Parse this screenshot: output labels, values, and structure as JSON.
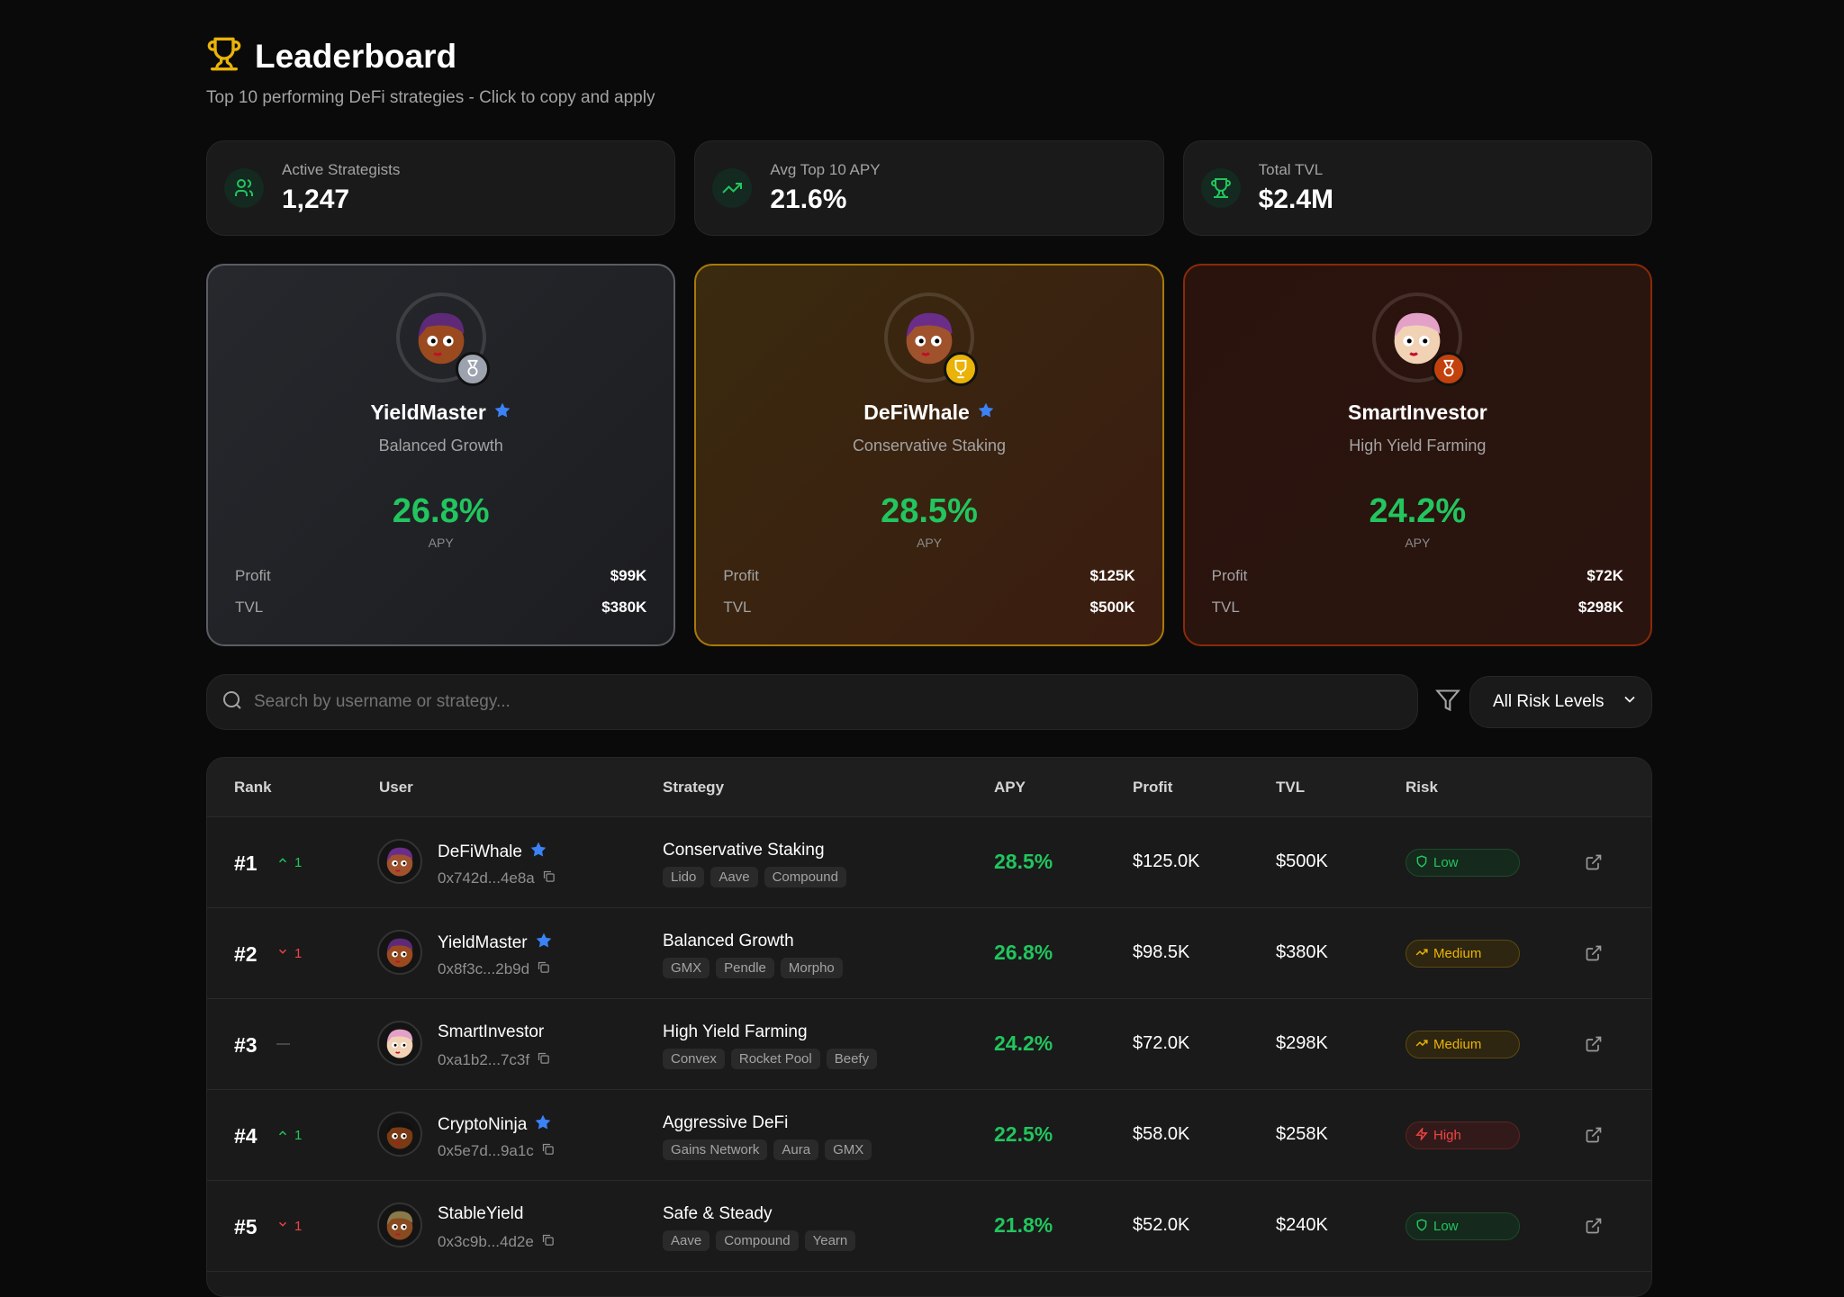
{
  "header": {
    "title": "Leaderboard",
    "subtitle": "Top 10 performing DeFi strategies - Click to copy and apply"
  },
  "stats": [
    {
      "label": "Active Strategists",
      "value": "1,247",
      "icon": "users-icon"
    },
    {
      "label": "Avg Top 10 APY",
      "value": "21.6%",
      "icon": "trending-up-icon"
    },
    {
      "label": "Total TVL",
      "value": "$2.4M",
      "icon": "trophy-icon"
    }
  ],
  "podium": [
    {
      "place": 2,
      "name": "YieldMaster",
      "verified": true,
      "strategy": "Balanced Growth",
      "apy": "26.8%",
      "apy_label": "APY",
      "profit_label": "Profit",
      "profit": "$99K",
      "tvl_label": "TVL",
      "tvl": "$380K"
    },
    {
      "place": 1,
      "name": "DeFiWhale",
      "verified": true,
      "strategy": "Conservative Staking",
      "apy": "28.5%",
      "apy_label": "APY",
      "profit_label": "Profit",
      "profit": "$125K",
      "tvl_label": "TVL",
      "tvl": "$500K"
    },
    {
      "place": 3,
      "name": "SmartInvestor",
      "verified": false,
      "strategy": "High Yield Farming",
      "apy": "24.2%",
      "apy_label": "APY",
      "profit_label": "Profit",
      "profit": "$72K",
      "tvl_label": "TVL",
      "tvl": "$298K"
    }
  ],
  "search": {
    "placeholder": "Search by username or strategy..."
  },
  "filter": {
    "selected": "All Risk Levels"
  },
  "table": {
    "headers": [
      "Rank",
      "User",
      "Strategy",
      "APY",
      "Profit",
      "TVL",
      "Risk"
    ],
    "rows": [
      {
        "rank": "#1",
        "change": "1",
        "dir": "up",
        "name": "DeFiWhale",
        "verified": true,
        "address": "0x742d...4e8a",
        "strategy": "Conservative Staking",
        "tags": [
          "Lido",
          "Aave",
          "Compound"
        ],
        "apy": "28.5%",
        "profit": "$125.0K",
        "tvl": "$500K",
        "risk": "Low"
      },
      {
        "rank": "#2",
        "change": "1",
        "dir": "down",
        "name": "YieldMaster",
        "verified": true,
        "address": "0x8f3c...2b9d",
        "strategy": "Balanced Growth",
        "tags": [
          "GMX",
          "Pendle",
          "Morpho"
        ],
        "apy": "26.8%",
        "profit": "$98.5K",
        "tvl": "$380K",
        "risk": "Medium"
      },
      {
        "rank": "#3",
        "change": "",
        "dir": "same",
        "name": "SmartInvestor",
        "verified": false,
        "address": "0xa1b2...7c3f",
        "strategy": "High Yield Farming",
        "tags": [
          "Convex",
          "Rocket Pool",
          "Beefy"
        ],
        "apy": "24.2%",
        "profit": "$72.0K",
        "tvl": "$298K",
        "risk": "Medium"
      },
      {
        "rank": "#4",
        "change": "1",
        "dir": "up",
        "name": "CryptoNinja",
        "verified": true,
        "address": "0x5e7d...9a1c",
        "strategy": "Aggressive DeFi",
        "tags": [
          "Gains Network",
          "Aura",
          "GMX"
        ],
        "apy": "22.5%",
        "profit": "$58.0K",
        "tvl": "$258K",
        "risk": "High"
      },
      {
        "rank": "#5",
        "change": "1",
        "dir": "down",
        "name": "StableYield",
        "verified": false,
        "address": "0x3c9b...4d2e",
        "strategy": "Safe & Steady",
        "tags": [
          "Aave",
          "Compound",
          "Yearn"
        ],
        "apy": "21.8%",
        "profit": "$52.0K",
        "tvl": "$240K",
        "risk": "Low"
      }
    ]
  },
  "colors": {
    "accent_green": "#22c55e",
    "gold": "#eab308",
    "silver": "#9ca3af",
    "bronze": "#c2410c",
    "verified": "#3b82f6"
  }
}
